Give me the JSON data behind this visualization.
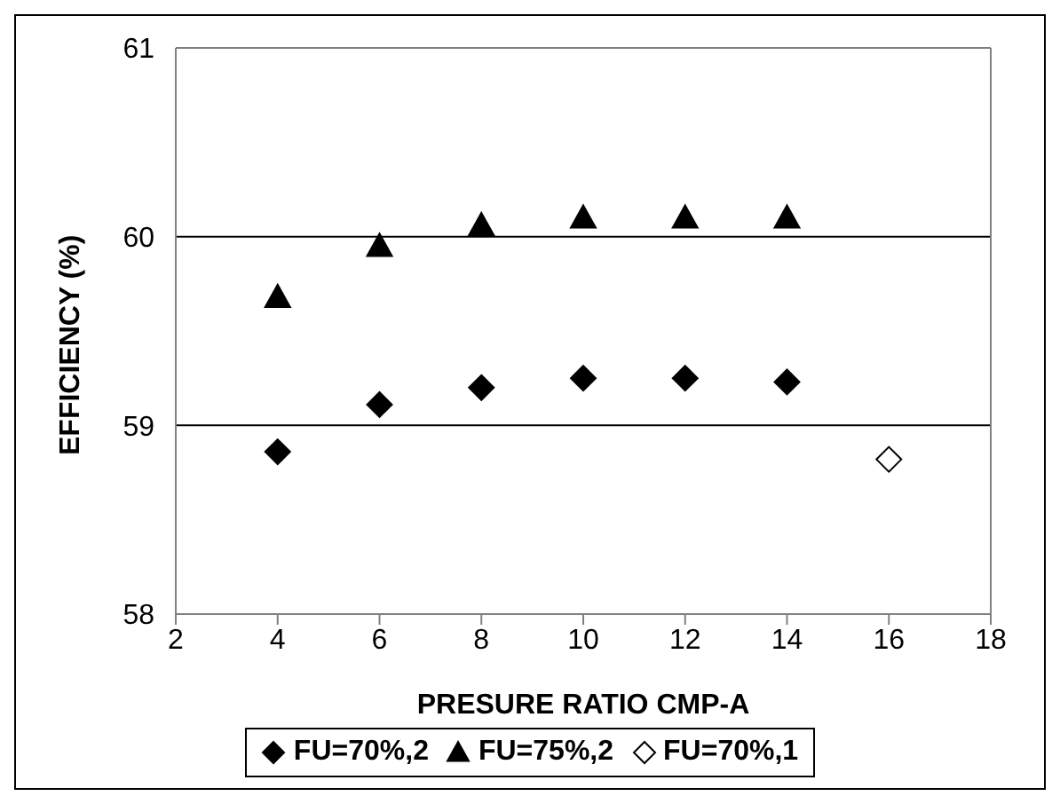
{
  "chart_data": {
    "type": "scatter",
    "xlabel": "PRESURE RATIO CMP-A",
    "ylabel": "EFFICIENCY (%)",
    "xlim": [
      2,
      18
    ],
    "xticks": [
      2,
      4,
      6,
      8,
      10,
      12,
      14,
      16,
      18
    ],
    "ylim": [
      58,
      61
    ],
    "yticks": [
      58,
      59,
      60,
      61
    ],
    "grid": "y",
    "legend": "bottom",
    "series": [
      {
        "name": "FU=70%,2",
        "color": "#000000",
        "marker": "diamond",
        "x": [
          4,
          6,
          8,
          10,
          12,
          14
        ],
        "values": [
          58.86,
          59.11,
          59.2,
          59.25,
          59.25,
          59.23
        ]
      },
      {
        "name": "FU=75%,2",
        "color": "#000000",
        "marker": "triangle",
        "x": [
          4,
          6,
          8,
          10,
          12,
          14
        ],
        "values": [
          59.68,
          59.95,
          60.06,
          60.1,
          60.1,
          60.1
        ]
      },
      {
        "name": "FU=70%,1",
        "color": "#ffffff",
        "marker": "diamond",
        "x": [
          16
        ],
        "values": [
          58.82
        ]
      }
    ]
  }
}
